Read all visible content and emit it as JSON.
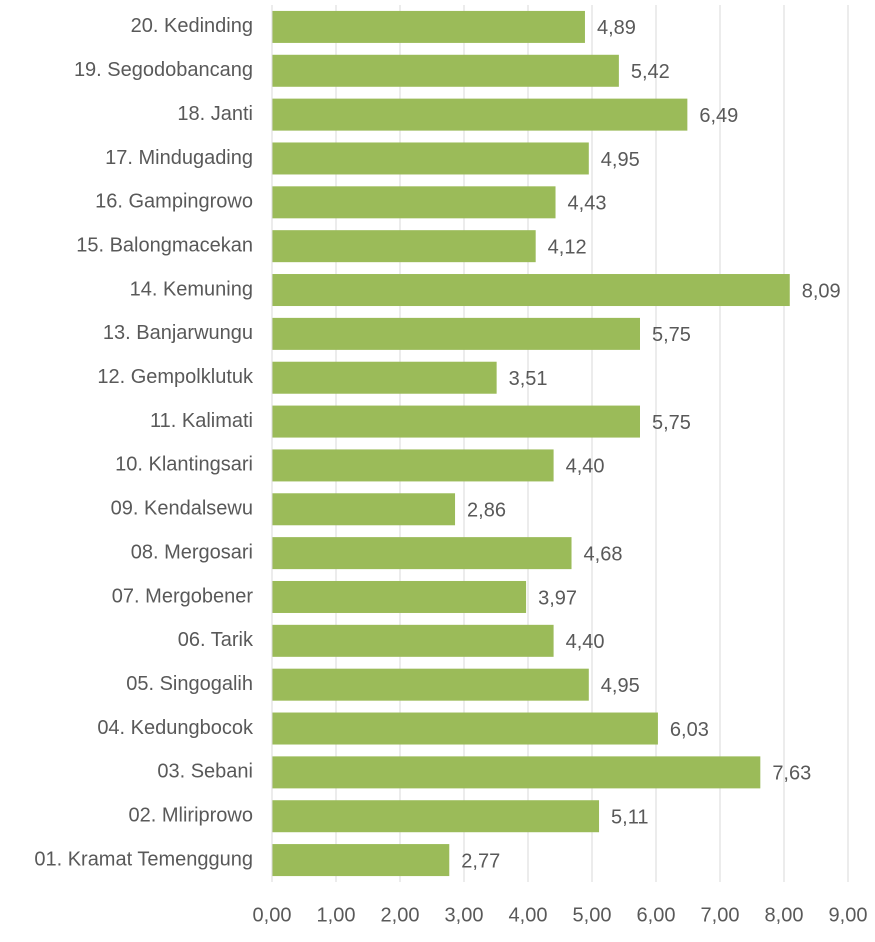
{
  "chart_data": {
    "type": "bar",
    "orientation": "horizontal",
    "categories": [
      "20. Kedinding",
      "19. Segodobancang",
      "18. Janti",
      "17. Mindugading",
      "16. Gampingrowo",
      "15. Balongmacekan",
      "14. Kemuning",
      "13. Banjarwungu",
      "12. Gempolklutuk",
      "11. Kalimati",
      "10. Klantingsari",
      "09. Kendalsewu",
      "08. Mergosari",
      "07. Mergobener",
      "06. Tarik",
      "05. Singogalih",
      "04. Kedungbocok",
      "03. Sebani",
      "02. Mliriprowo",
      "01. Kramat Temenggung"
    ],
    "values": [
      4.89,
      5.42,
      6.49,
      4.95,
      4.43,
      4.12,
      8.09,
      5.75,
      3.51,
      5.75,
      4.4,
      2.86,
      4.68,
      3.97,
      4.4,
      4.95,
      6.03,
      7.63,
      5.11,
      2.77
    ],
    "value_labels": [
      "4,89",
      "5,42",
      "6,49",
      "4,95",
      "4,43",
      "4,12",
      "8,09",
      "5,75",
      "3,51",
      "5,75",
      "4,40",
      "2,86",
      "4,68",
      "3,97",
      "4,40",
      "4,95",
      "6,03",
      "7,63",
      "5,11",
      "2,77"
    ],
    "color": "#9bbb59",
    "xlim": [
      0,
      9
    ],
    "xticks": [
      {
        "value": 0,
        "label": "0,00"
      },
      {
        "value": 1,
        "label": "1,00"
      },
      {
        "value": 2,
        "label": "2,00"
      },
      {
        "value": 3,
        "label": "3,00"
      },
      {
        "value": 4,
        "label": "4,00"
      },
      {
        "value": 5,
        "label": "5,00"
      },
      {
        "value": 6,
        "label": "6,00"
      },
      {
        "value": 7,
        "label": "7,00"
      },
      {
        "value": 8,
        "label": "8,00"
      },
      {
        "value": 9,
        "label": "9,00"
      }
    ],
    "grid": true
  }
}
